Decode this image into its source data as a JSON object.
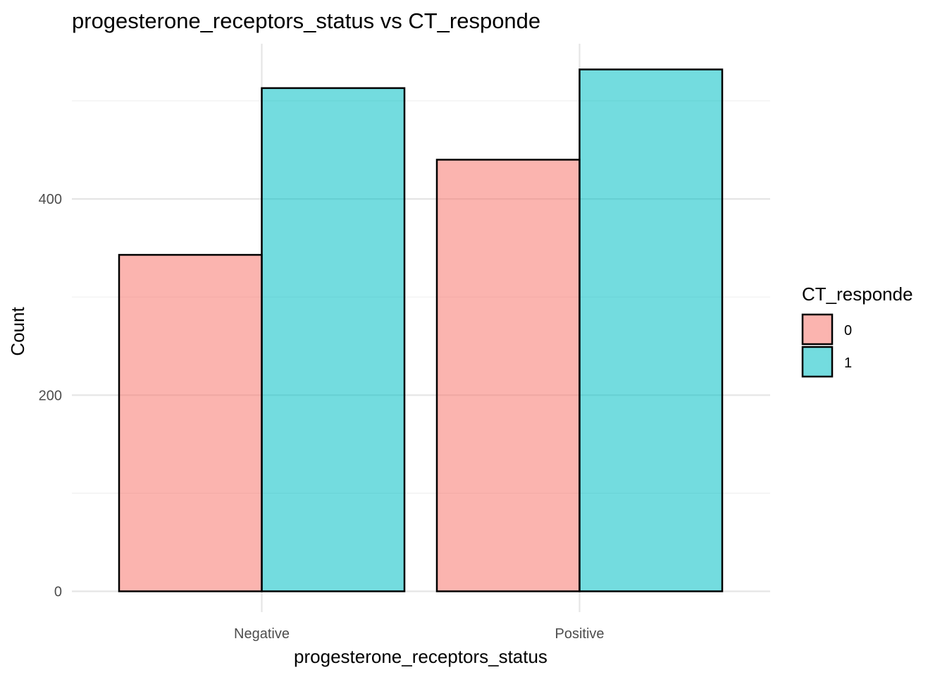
{
  "chart_data": {
    "type": "bar",
    "title": "progesterone_receptors_status vs CT_responde",
    "xlabel": "progesterone_receptors_status",
    "ylabel": "Count",
    "categories": [
      "Negative",
      "Positive"
    ],
    "series": [
      {
        "name": "0",
        "values": [
          343,
          440
        ],
        "color": "#F8766D"
      },
      {
        "name": "1",
        "values": [
          513,
          532
        ],
        "color": "#00BFC4"
      }
    ],
    "ylim": [
      0,
      560
    ],
    "yticks": [
      0,
      200,
      400
    ],
    "grid": true,
    "legend": {
      "title": "CT_responde",
      "position": "right"
    },
    "fill_opacity": 0.55
  }
}
